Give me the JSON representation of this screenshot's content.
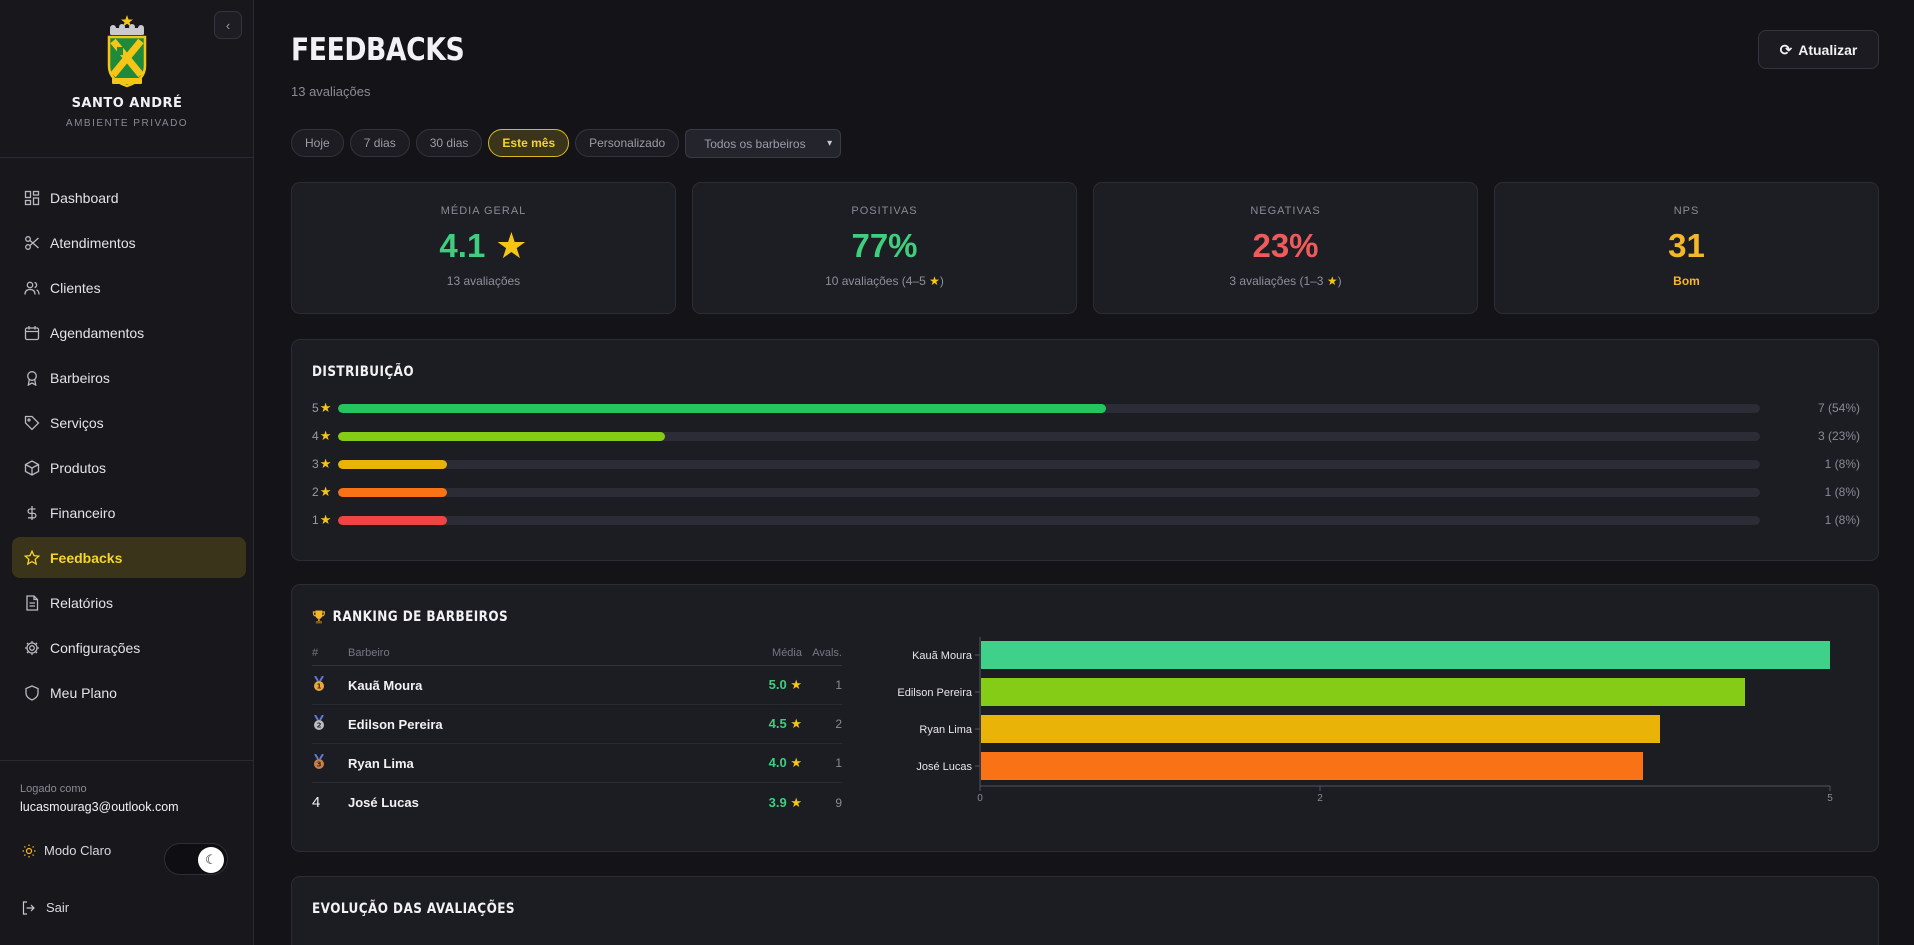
{
  "sidebar": {
    "brand_name": "SANTO ANDRÉ",
    "brand_sub": "AMBIENTE PRIVADO",
    "items": [
      {
        "label": "Dashboard",
        "icon": "dashboard-icon"
      },
      {
        "label": "Atendimentos",
        "icon": "scissors-icon"
      },
      {
        "label": "Clientes",
        "icon": "users-icon"
      },
      {
        "label": "Agendamentos",
        "icon": "calendar-icon"
      },
      {
        "label": "Barbeiros",
        "icon": "award-icon"
      },
      {
        "label": "Serviços",
        "icon": "tag-icon"
      },
      {
        "label": "Produtos",
        "icon": "package-icon"
      },
      {
        "label": "Financeiro",
        "icon": "dollar-icon"
      },
      {
        "label": "Feedbacks",
        "icon": "star-icon",
        "active": true
      },
      {
        "label": "Relatórios",
        "icon": "file-icon"
      },
      {
        "label": "Configurações",
        "icon": "gear-icon"
      },
      {
        "label": "Meu Plano",
        "icon": "shield-icon"
      }
    ],
    "logged_label": "Logado como",
    "logged_email": "lucasmourag3@outlook.com",
    "mode_label": "Modo Claro",
    "logout_label": "Sair"
  },
  "header": {
    "title": "FEEDBACKS",
    "subtitle": "13 avaliações",
    "refresh_label": "Atualizar"
  },
  "filters": {
    "chips": [
      "Hoje",
      "7 dias",
      "30 dias",
      "Este mês",
      "Personalizado"
    ],
    "active": "Este mês",
    "barber_select": "Todos os barbeiros"
  },
  "cards": {
    "media": {
      "label": "MÉDIA GERAL",
      "value": "4.1",
      "sub": "13 avaliações"
    },
    "positivas": {
      "label": "POSITIVAS",
      "value": "77%",
      "sub": "10 avaliações (4–5",
      "sub_end": ")"
    },
    "negativas": {
      "label": "NEGATIVAS",
      "value": "23%",
      "sub": "3 avaliações (1–3",
      "sub_end": ")"
    },
    "nps": {
      "label": "NPS",
      "value": "31",
      "sub": "Bom"
    }
  },
  "distribution": {
    "title": "DISTRIBUIÇÃO",
    "rows": [
      {
        "stars": "5",
        "fraction": 0.54,
        "count": "7 (54%)",
        "color": "#22c55e"
      },
      {
        "stars": "4",
        "fraction": 0.23,
        "count": "3 (23%)",
        "color": "#84cc16"
      },
      {
        "stars": "3",
        "fraction": 0.077,
        "count": "1 (8%)",
        "color": "#eab308"
      },
      {
        "stars": "2",
        "fraction": 0.077,
        "count": "1 (8%)",
        "color": "#f97316"
      },
      {
        "stars": "1",
        "fraction": 0.077,
        "count": "1 (8%)",
        "color": "#ef4444"
      }
    ]
  },
  "ranking": {
    "title": "RANKING DE BARBEIROS",
    "trophy_icon": "trophy-icon",
    "columns": {
      "pos": "#",
      "name": "Barbeiro",
      "avg": "Média",
      "count": "Avals."
    },
    "rows": [
      {
        "pos": "1",
        "medal": "gold",
        "name": "Kauã Moura",
        "avg": "5.0",
        "count": "1"
      },
      {
        "pos": "2",
        "medal": "silver",
        "name": "Edilson Pereira",
        "avg": "4.5",
        "count": "2"
      },
      {
        "pos": "3",
        "medal": "bronze",
        "name": "Ryan Lima",
        "avg": "4.0",
        "count": "1"
      },
      {
        "pos": "4",
        "medal": "",
        "name": "José Lucas",
        "avg": "3.9",
        "count": "9"
      }
    ]
  },
  "chart_data": {
    "type": "bar",
    "orientation": "horizontal",
    "categories": [
      "Kauã Moura",
      "Edilson Pereira",
      "Ryan Lima",
      "José Lucas"
    ],
    "values": [
      5.0,
      4.5,
      4.0,
      3.9
    ],
    "colors": [
      "#3fd08a",
      "#84cc16",
      "#eab308",
      "#f97316"
    ],
    "xlim": [
      0,
      5
    ],
    "xticks": [
      "0",
      "2",
      "5"
    ],
    "title": "",
    "xlabel": "",
    "ylabel": "",
    "grid": false
  },
  "evolution": {
    "title": "EVOLUÇÃO DAS AVALIAÇÕES"
  },
  "colors": {
    "accent": "#f7d42a",
    "positive": "#3fce7e",
    "negative": "#ef5b5b",
    "nps": "#f5b72a"
  }
}
